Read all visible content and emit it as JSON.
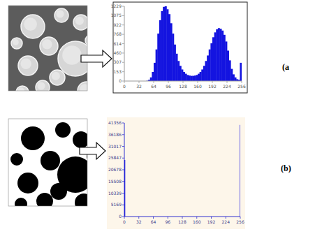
{
  "chart_data": [
    {
      "type": "histogram",
      "annotations": [
        "(a"
      ],
      "bins": [
        0,
        4,
        8,
        12,
        16,
        20,
        24,
        28,
        32,
        36,
        40,
        44,
        48,
        52,
        56,
        60,
        64,
        68,
        72,
        76,
        80,
        84,
        88,
        92,
        96,
        100,
        104,
        108,
        112,
        116,
        120,
        124,
        128,
        132,
        136,
        140,
        144,
        148,
        152,
        156,
        160,
        164,
        168,
        172,
        176,
        180,
        184,
        188,
        192,
        196,
        200,
        204,
        208,
        212,
        216,
        220,
        224,
        228,
        232,
        236,
        240,
        244,
        248,
        252,
        256
      ],
      "values": [
        0,
        0,
        0,
        0,
        0,
        0,
        0,
        0,
        0,
        0,
        0,
        0,
        5,
        20,
        60,
        150,
        300,
        520,
        780,
        1000,
        1150,
        1220,
        1229,
        1180,
        1100,
        950,
        780,
        600,
        450,
        330,
        250,
        190,
        150,
        120,
        100,
        90,
        85,
        85,
        90,
        100,
        120,
        150,
        190,
        250,
        330,
        420,
        520,
        620,
        720,
        800,
        850,
        870,
        860,
        830,
        760,
        650,
        500,
        340,
        200,
        110,
        60,
        30,
        20,
        300
      ],
      "color": "#1414e0",
      "xlim": [
        0,
        256
      ],
      "xticks": [
        0,
        32,
        64,
        96,
        128,
        160,
        192,
        224,
        256
      ],
      "ylim": [
        0,
        1229
      ],
      "yticks": [
        0,
        153,
        307,
        460,
        614,
        768,
        922,
        1075,
        1229
      ],
      "grid": false
    },
    {
      "type": "histogram",
      "annotations": [
        "(b)"
      ],
      "bins": [
        0,
        1,
        255,
        256
      ],
      "values": [
        25000,
        0,
        40500
      ],
      "color": "#1414e0",
      "xlim": [
        0,
        256
      ],
      "xticks": [
        0,
        32,
        64,
        96,
        128,
        160,
        192,
        224,
        256
      ],
      "ylim": [
        0,
        41356
      ],
      "yticks": [
        0,
        5169,
        10339,
        15508,
        20678,
        25847,
        31017,
        36186,
        41356
      ],
      "grid": false
    }
  ]
}
